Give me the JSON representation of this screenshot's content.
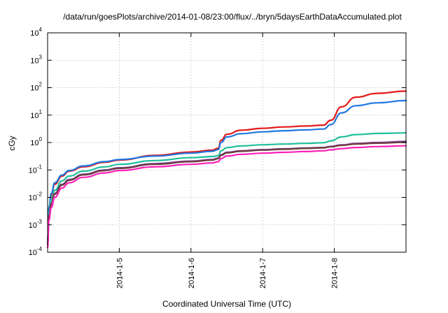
{
  "chart_data": {
    "type": "line",
    "title": "/data/run/goesPlots/archive/2014-01-08/23:00/flux/../bryn/5daysEarthDataAccumulated.plot",
    "xlabel": "Coordinated Universal Time (UTC)",
    "ylabel": "cGy",
    "y_scale": "log",
    "ylim": [
      0.0001,
      10000
    ],
    "xlim": [
      2014.0104,
      2014.0833
    ],
    "x_unit_note": "days",
    "x_ticks": [
      {
        "label": "2014-1-5",
        "x": 5
      },
      {
        "label": "2014-1-6",
        "x": 6
      },
      {
        "label": "2014-1-7",
        "x": 7
      },
      {
        "label": "2014-1-8",
        "x": 8
      }
    ],
    "y_ticks": [
      {
        "base": "10",
        "exp": "-4",
        "value": 0.0001
      },
      {
        "base": "10",
        "exp": "-3",
        "value": 0.001
      },
      {
        "base": "10",
        "exp": "-2",
        "value": 0.01
      },
      {
        "base": "10",
        "exp": "-1",
        "value": 0.1
      },
      {
        "base": "10",
        "exp": "0",
        "value": 1
      },
      {
        "base": "10",
        "exp": "1",
        "value": 10
      },
      {
        "base": "10",
        "exp": "2",
        "value": 100
      },
      {
        "base": "10",
        "exp": "3",
        "value": 1000
      },
      {
        "base": "10",
        "exp": "4",
        "value": 10000
      }
    ],
    "grid": true,
    "legend": "none",
    "series": [
      {
        "color": "#e41a1c",
        "x": [
          4.0,
          4.02,
          4.05,
          4.1,
          4.2,
          4.3,
          4.5,
          4.8,
          5.0,
          5.5,
          6.0,
          6.3,
          6.38,
          6.42,
          6.5,
          6.7,
          7.0,
          7.3,
          7.6,
          7.85,
          7.95,
          8.1,
          8.3,
          8.6,
          9.0
        ],
        "y": [
          0.0003,
          0.004,
          0.012,
          0.03,
          0.06,
          0.09,
          0.13,
          0.19,
          0.23,
          0.34,
          0.45,
          0.53,
          0.62,
          1.2,
          2.0,
          2.8,
          3.3,
          3.7,
          4.0,
          4.3,
          6.5,
          20,
          45,
          62,
          75
        ]
      },
      {
        "color": "#1f78e0",
        "x": [
          4.0,
          4.02,
          4.05,
          4.1,
          4.2,
          4.3,
          4.5,
          4.8,
          5.0,
          5.5,
          6.0,
          6.3,
          6.38,
          6.42,
          6.5,
          6.7,
          7.0,
          7.3,
          7.6,
          7.85,
          7.95,
          8.1,
          8.3,
          8.6,
          9.0
        ],
        "y": [
          0.0003,
          0.0045,
          0.014,
          0.034,
          0.065,
          0.095,
          0.14,
          0.2,
          0.24,
          0.32,
          0.41,
          0.48,
          0.55,
          1.0,
          1.6,
          2.1,
          2.45,
          2.7,
          2.9,
          3.1,
          4.5,
          12,
          22,
          28,
          34
        ]
      },
      {
        "color": "#1fbf9a",
        "x": [
          4.0,
          4.02,
          4.05,
          4.1,
          4.2,
          4.3,
          4.5,
          4.8,
          5.0,
          5.5,
          6.0,
          6.3,
          6.38,
          6.42,
          6.5,
          6.7,
          7.0,
          7.3,
          7.6,
          7.85,
          7.95,
          8.1,
          8.3,
          8.6,
          9.0
        ],
        "y": [
          0.00025,
          0.003,
          0.008,
          0.018,
          0.04,
          0.06,
          0.09,
          0.13,
          0.16,
          0.22,
          0.28,
          0.31,
          0.33,
          0.5,
          0.65,
          0.75,
          0.83,
          0.88,
          0.93,
          0.98,
          1.15,
          1.6,
          1.95,
          2.15,
          2.25
        ]
      },
      {
        "color": "#7b3fa0",
        "x": [
          4.0,
          4.02,
          4.05,
          4.1,
          4.2,
          4.3,
          4.5,
          4.8,
          5.0,
          5.5,
          6.0,
          6.3,
          6.38,
          6.42,
          6.5,
          6.7,
          7.0,
          7.3,
          7.6,
          7.85,
          7.95,
          8.1,
          8.3,
          8.6,
          9.0
        ],
        "y": [
          0.0002,
          0.0022,
          0.006,
          0.014,
          0.03,
          0.045,
          0.07,
          0.1,
          0.12,
          0.17,
          0.21,
          0.24,
          0.27,
          0.36,
          0.44,
          0.5,
          0.55,
          0.59,
          0.63,
          0.66,
          0.72,
          0.82,
          0.92,
          1.0,
          1.1
        ]
      },
      {
        "color": "#6e3b3b",
        "x": [
          4.0,
          4.02,
          4.05,
          4.1,
          4.2,
          4.3,
          4.5,
          4.8,
          5.0,
          5.5,
          6.0,
          6.3,
          6.38,
          6.42,
          6.5,
          6.7,
          7.0,
          7.3,
          7.6,
          7.85,
          7.95,
          8.1,
          8.3,
          8.6,
          9.0
        ],
        "y": [
          0.0002,
          0.002,
          0.0055,
          0.013,
          0.028,
          0.042,
          0.066,
          0.095,
          0.115,
          0.16,
          0.2,
          0.23,
          0.26,
          0.34,
          0.42,
          0.48,
          0.53,
          0.57,
          0.61,
          0.64,
          0.7,
          0.79,
          0.88,
          0.95,
          1.02
        ]
      },
      {
        "color": "#ff1fb8",
        "x": [
          4.0,
          4.02,
          4.05,
          4.1,
          4.2,
          4.3,
          4.5,
          4.8,
          5.0,
          5.5,
          6.0,
          6.3,
          6.38,
          6.42,
          6.5,
          6.7,
          7.0,
          7.3,
          7.6,
          7.85,
          7.95,
          8.1,
          8.3,
          8.6,
          9.0
        ],
        "y": [
          0.00015,
          0.0015,
          0.0042,
          0.01,
          0.022,
          0.034,
          0.054,
          0.078,
          0.095,
          0.13,
          0.16,
          0.18,
          0.2,
          0.26,
          0.32,
          0.37,
          0.41,
          0.44,
          0.47,
          0.5,
          0.54,
          0.6,
          0.66,
          0.71,
          0.76
        ]
      }
    ]
  }
}
